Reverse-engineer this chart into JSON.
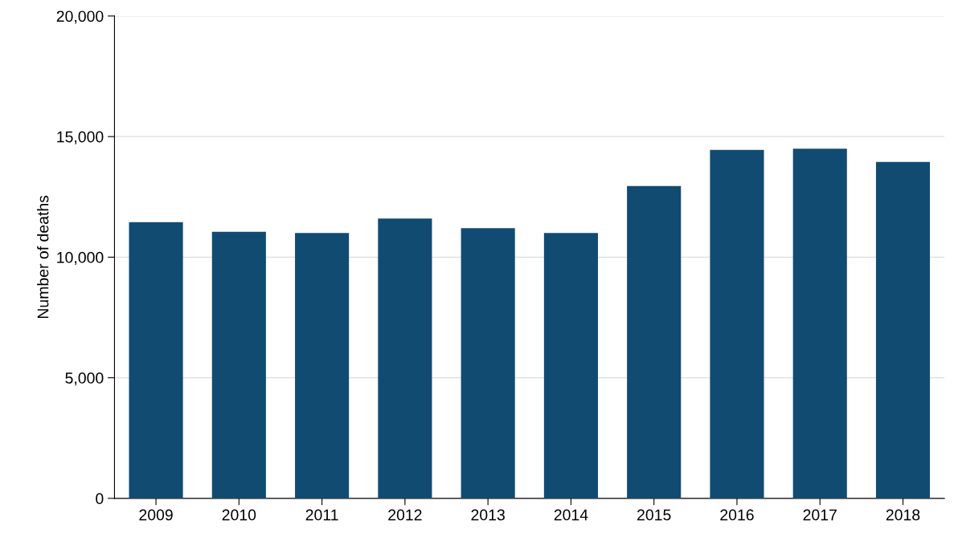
{
  "chart_data": {
    "type": "bar",
    "ylabel": "Number of deaths",
    "categories": [
      "2009",
      "2010",
      "2011",
      "2012",
      "2013",
      "2014",
      "2015",
      "2016",
      "2017",
      "2018"
    ],
    "values": [
      11450,
      11050,
      11000,
      11600,
      11200,
      11000,
      12950,
      14450,
      14500,
      13950
    ],
    "color": "#114b72",
    "ylim": [
      0,
      20000
    ],
    "yticks": [
      {
        "value": 0,
        "label": "0"
      },
      {
        "value": 5000,
        "label": "5,000"
      },
      {
        "value": 10000,
        "label": "10,000"
      },
      {
        "value": 15000,
        "label": "15,000"
      },
      {
        "value": 20000,
        "label": "20,000"
      }
    ],
    "grid": "y"
  }
}
